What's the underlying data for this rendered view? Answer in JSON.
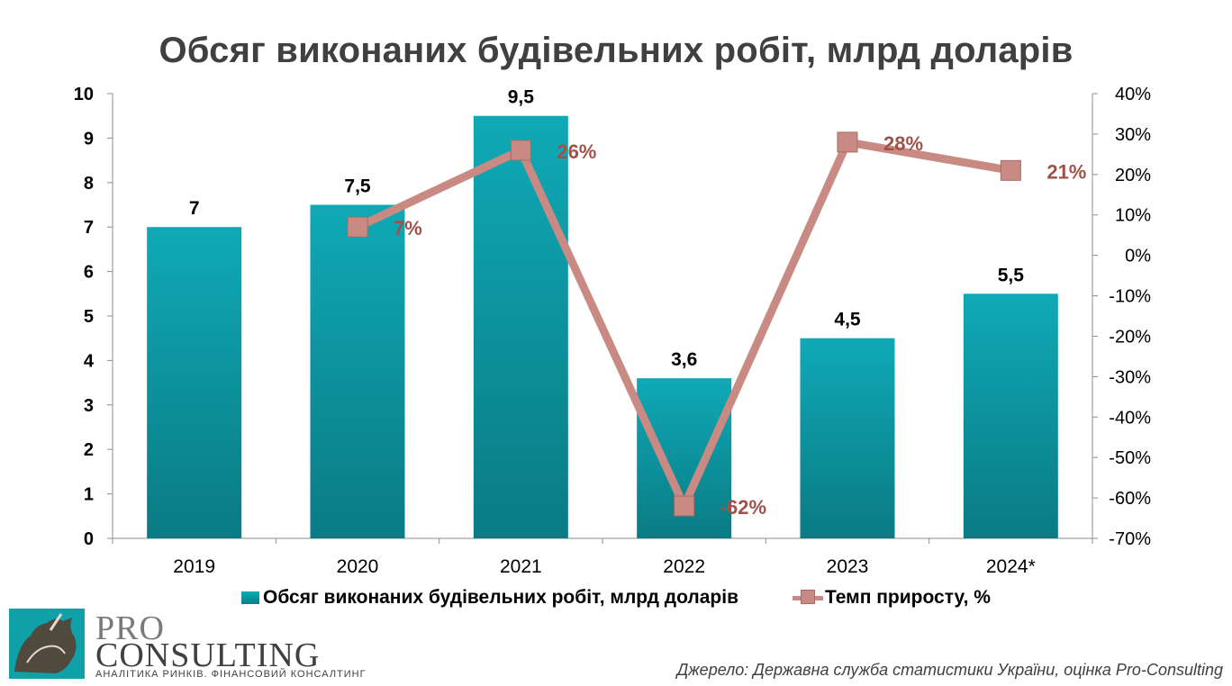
{
  "chart_data": {
    "type": "bar",
    "title": "Обсяг виконаних будівельних робіт, млрд доларів",
    "categories": [
      "2019",
      "2020",
      "2021",
      "2022",
      "2023",
      "2024*"
    ],
    "series": [
      {
        "name": "Обсяг виконаних будівельних робіт, млрд доларів",
        "type": "bar",
        "axis": "left",
        "values": [
          7,
          7.5,
          9.5,
          3.6,
          4.5,
          5.5
        ],
        "labels": [
          "7",
          "7,5",
          "9,5",
          "3,6",
          "4,5",
          "5,5"
        ],
        "color": "#0e9aa5"
      },
      {
        "name": "Темп приросту, %",
        "type": "line",
        "axis": "right",
        "values": [
          null,
          7,
          26,
          -62,
          28,
          21
        ],
        "labels": [
          "",
          "7%",
          "26%",
          "-62%",
          "28%",
          "21%"
        ],
        "color": "#c98a83"
      }
    ],
    "y_left": {
      "range": [
        0,
        10
      ],
      "ticks": [
        "0",
        "1",
        "2",
        "3",
        "4",
        "5",
        "6",
        "7",
        "8",
        "9",
        "10"
      ]
    },
    "y_right": {
      "range": [
        -70,
        40
      ],
      "ticks": [
        "-70%",
        "-60%",
        "-50%",
        "-40%",
        "-30%",
        "-20%",
        "-10%",
        "0%",
        "10%",
        "20%",
        "30%",
        "40%"
      ]
    },
    "grid": false,
    "legend_position": "bottom"
  },
  "logo": {
    "line1": "PRO",
    "line2": "CONSULTING",
    "tagline": "АНАЛІТИКА РИНКІВ. ФІНАНСОВИЙ КОНСАЛТИНГ"
  },
  "source": "Джерело: Державна служба статистики України, оцінка Pro-Consulting"
}
